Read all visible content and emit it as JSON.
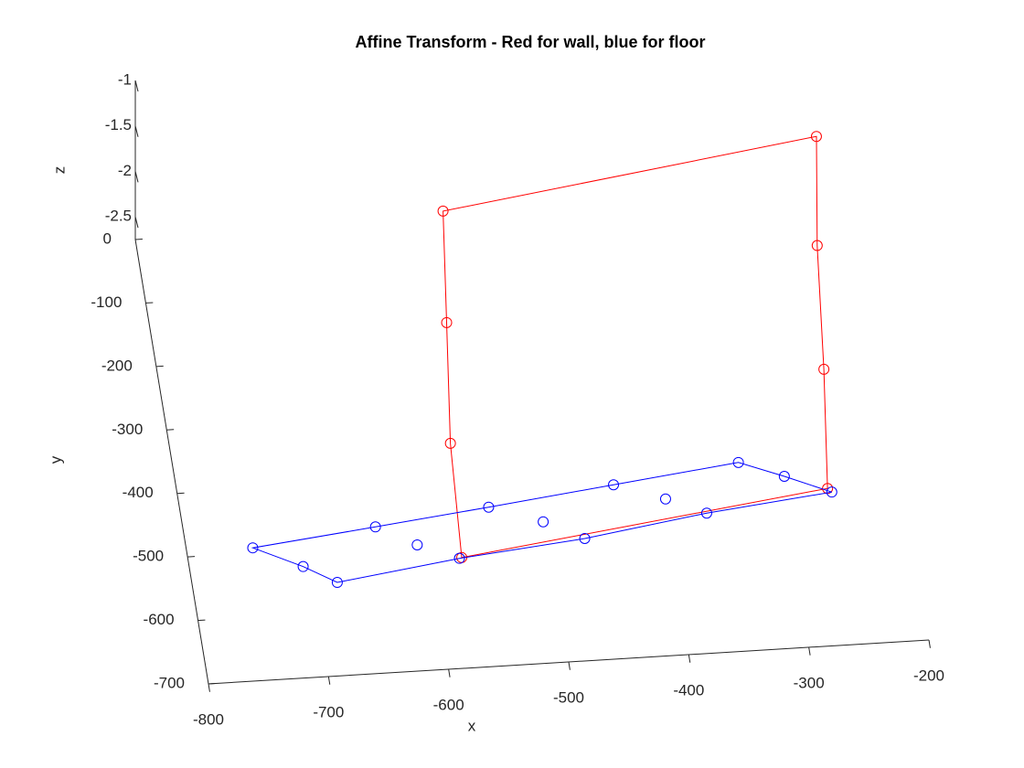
{
  "chart_data": {
    "type": "line3d",
    "title": "Affine Transform - Red for wall, blue for floor",
    "x_label": "x",
    "y_label": "y",
    "z_label": "z",
    "xlim": [
      -800,
      -200
    ],
    "ylim": [
      -700,
      0
    ],
    "zlim": [
      -2.75,
      -1
    ],
    "xticks": [
      -800,
      -700,
      -600,
      -500,
      -400,
      -300,
      -200
    ],
    "yticks": [
      -700,
      -600,
      -500,
      -400,
      -300,
      -200,
      -100,
      0
    ],
    "zticks": [
      -2.5,
      -2,
      -1.5,
      -1
    ],
    "series": [
      {
        "color": "#ff0000",
        "line": "closed",
        "x": [
          -564,
          -569,
          -575,
          -574,
          -263,
          -257,
          -253,
          -246
        ],
        "y": [
          -233,
          -325,
          -430,
          -527,
          -454,
          -350,
          -240,
          -152
        ],
        "z": [
          -1,
          -1.58,
          -2.17,
          -2.75,
          -2.75,
          -2.17,
          -1.58,
          -1
        ]
      },
      {
        "color": "#0000ff",
        "line": "closed",
        "x": [
          -745,
          -706,
          -680,
          -576,
          -470,
          -366,
          -260,
          -297,
          -333,
          -439,
          -545,
          -641
        ],
        "y": [
          -492,
          -526,
          -554,
          -528,
          -509,
          -481,
          -460,
          -431,
          -405,
          -428,
          -451,
          -471
        ],
        "z": [
          -2.75,
          -2.75,
          -2.75,
          -2.75,
          -2.75,
          -2.75,
          -2.75,
          -2.75,
          -2.75,
          -2.75,
          -2.75,
          -2.75
        ]
      },
      {
        "color": "#0000ff",
        "line": "none",
        "x": [
          -609,
          -502,
          -398
        ],
        "y": [
          -503,
          -479,
          -455
        ],
        "z": [
          -2.75,
          -2.75,
          -2.75
        ]
      }
    ]
  }
}
